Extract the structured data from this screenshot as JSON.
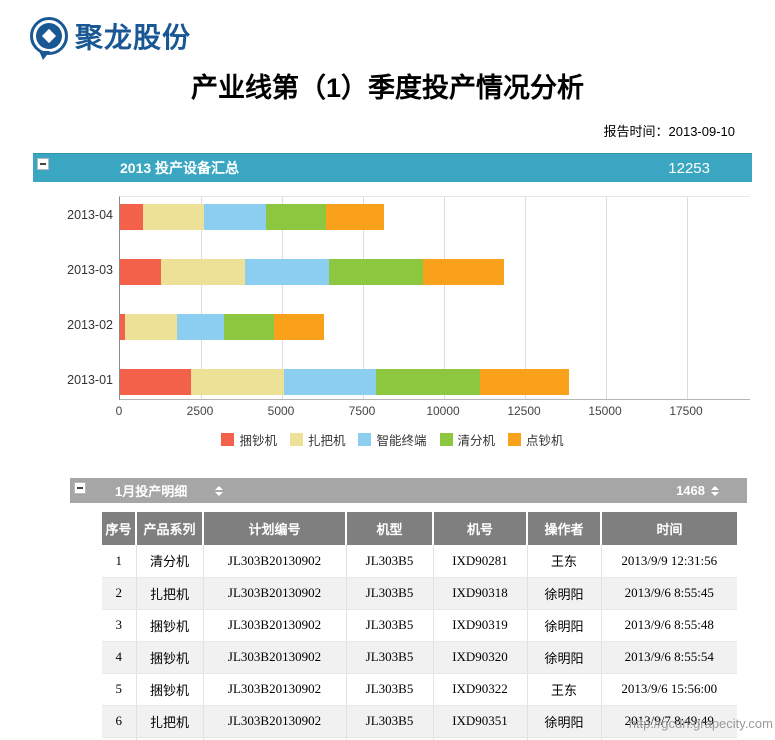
{
  "brand": {
    "logo_text": "聚龙股份"
  },
  "report": {
    "title": "产业线第（1）季度投产情况分析",
    "time_label": "报告时间：",
    "time_value": "2013-09-10"
  },
  "summary_panel": {
    "title": "2013 投产设备汇总",
    "value": "12253",
    "bar_color": "#3BA6C1",
    "collapse_icon": "minus-box"
  },
  "chart_data": {
    "type": "bar",
    "orientation": "horizontal",
    "stacked": true,
    "title": "2013 投产设备汇总",
    "categories": [
      "2013-04",
      "2013-03",
      "2013-02",
      "2013-01"
    ],
    "series": [
      {
        "name": "捆钞机",
        "color": "#F4614B",
        "values": [
          700,
          1250,
          150,
          2200
        ]
      },
      {
        "name": "扎把机",
        "color": "#EDE198",
        "values": [
          1900,
          2600,
          1600,
          2850
        ]
      },
      {
        "name": "智能终端",
        "color": "#8CCEF0",
        "values": [
          1900,
          2600,
          1450,
          2850
        ]
      },
      {
        "name": "清分机",
        "color": "#8DC63F",
        "values": [
          1850,
          2900,
          1550,
          3200
        ]
      },
      {
        "name": "点钞机",
        "color": "#F9A11B",
        "values": [
          1800,
          2500,
          1550,
          2750
        ]
      }
    ],
    "xlim": [
      0,
      17500
    ],
    "xticks": [
      0,
      2500,
      5000,
      7500,
      10000,
      12500,
      15000,
      17500
    ],
    "grid": true,
    "legend_position": "bottom"
  },
  "detail_panel": {
    "title": "1月投产明细",
    "value": "1468",
    "bar_color": "#A6A6A6",
    "collapse_icon": "minus-box"
  },
  "table": {
    "columns": [
      "序号",
      "产品系列",
      "计划编号",
      "机型",
      "机号",
      "操作者",
      "时间"
    ],
    "rows": [
      [
        "1",
        "清分机",
        "JL303B20130902",
        "JL303B5",
        "IXD90281",
        "王东",
        "2013/9/9 12:31:56"
      ],
      [
        "2",
        "扎把机",
        "JL303B20130902",
        "JL303B5",
        "IXD90318",
        "徐明阳",
        "2013/9/6 8:55:45"
      ],
      [
        "3",
        "捆钞机",
        "JL303B20130902",
        "JL303B5",
        "IXD90319",
        "徐明阳",
        "2013/9/6 8:55:48"
      ],
      [
        "4",
        "捆钞机",
        "JL303B20130902",
        "JL303B5",
        "IXD90320",
        "徐明阳",
        "2013/9/6 8:55:54"
      ],
      [
        "5",
        "捆钞机",
        "JL303B20130902",
        "JL303B5",
        "IXD90322",
        "王东",
        "2013/9/6 15:56:00"
      ],
      [
        "6",
        "扎把机",
        "JL303B20130902",
        "JL303B5",
        "IXD90351",
        "徐明阳",
        "2013/9/7 8:49:49"
      ]
    ]
  },
  "watermark": "http://gcdn.grapecity.com"
}
